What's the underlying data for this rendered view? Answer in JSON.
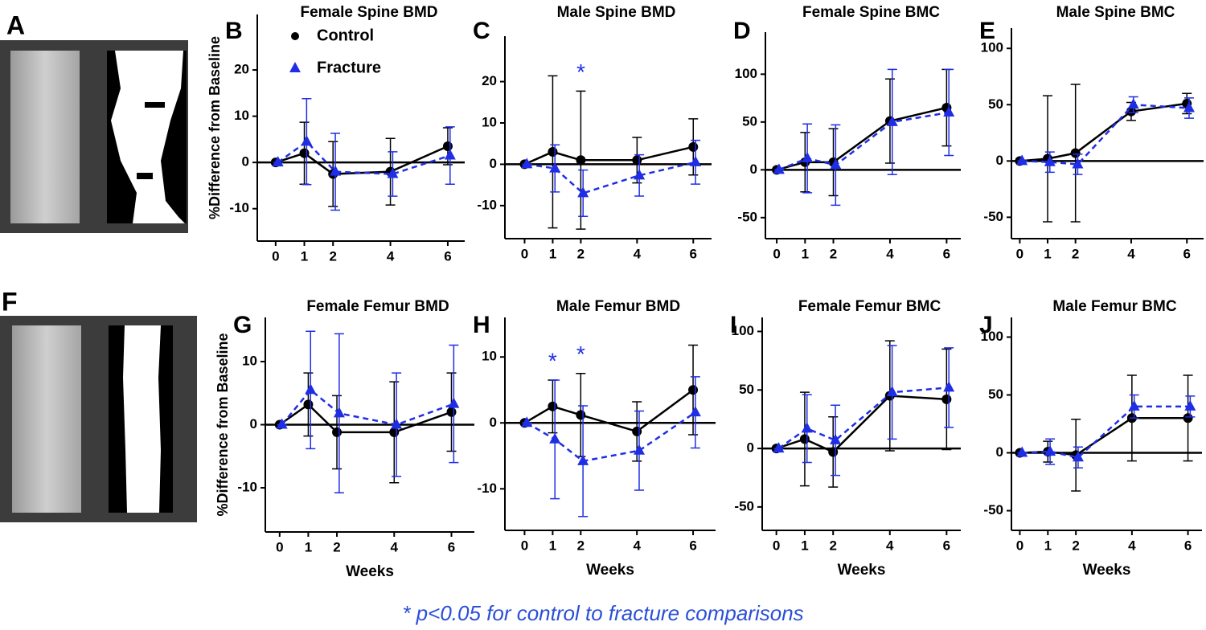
{
  "figure": {
    "image_panels": [
      {
        "label": "A"
      },
      {
        "label": "F"
      }
    ],
    "footnote": "* p<0.05 for control to fracture comparisons"
  },
  "chart_data": [
    {
      "label": "B",
      "type": "line",
      "title": "Female Spine BMD",
      "ylabel": "%Difference from Baseline",
      "legend": "upper left",
      "x": [
        0,
        1,
        2,
        4,
        6
      ],
      "xticks": [
        0,
        1,
        2,
        4,
        6
      ],
      "xlim": [
        -0.64,
        6.59
      ],
      "ylim": [
        -17,
        32
      ],
      "yticks": [
        -10,
        0,
        10,
        20
      ],
      "hline": 0,
      "series": [
        {
          "name": "Control",
          "color": "#000000",
          "line_style": "solid",
          "marker": "circle",
          "values": [
            0,
            2,
            -2.5,
            -2,
            3.5
          ],
          "errors": [
            0,
            6.7,
            7,
            7.2,
            4
          ]
        },
        {
          "name": "Fracture",
          "color": "#1f2ee6",
          "line_style": "dashed",
          "marker": "triangle",
          "values": [
            0,
            4.5,
            -2,
            -2.5,
            1.5
          ],
          "errors": [
            0,
            9.3,
            8.3,
            4.8,
            6.2
          ]
        }
      ]
    },
    {
      "label": "C",
      "type": "line",
      "title": "Male Spine BMD",
      "x": [
        0,
        1,
        2,
        4,
        6
      ],
      "xticks": [
        0,
        1,
        2,
        4,
        6
      ],
      "xlim": [
        -0.7,
        6.65
      ],
      "ylim": [
        -18,
        31
      ],
      "yticks": [
        -10,
        0,
        10,
        20
      ],
      "hline": 0,
      "series": [
        {
          "name": "Control",
          "color": "#000000",
          "line_style": "solid",
          "marker": "circle",
          "values": [
            0,
            3,
            1,
            1,
            4.2
          ],
          "errors": [
            0,
            18.4,
            16.7,
            5.5,
            6.8
          ]
        },
        {
          "name": "Fracture",
          "color": "#1f2ee6",
          "line_style": "dashed",
          "marker": "triangle",
          "values": [
            0,
            -1,
            -7,
            -2.7,
            0.5
          ],
          "errors": [
            0,
            5.7,
            5.6,
            5,
            5.3
          ]
        }
      ],
      "annotations": [
        {
          "text": "*",
          "x": 2
        }
      ]
    },
    {
      "label": "D",
      "type": "line",
      "title": "Female Spine BMC",
      "x": [
        0,
        1,
        2,
        4,
        6
      ],
      "xticks": [
        0,
        1,
        2,
        4,
        6
      ],
      "xlim": [
        -0.4,
        6.5
      ],
      "ylim": [
        -72,
        144
      ],
      "yticks": [
        -50,
        0,
        50,
        100
      ],
      "hline": 0,
      "series": [
        {
          "name": "Control",
          "color": "#000000",
          "line_style": "solid",
          "marker": "circle",
          "values": [
            0,
            8,
            8,
            51,
            65
          ],
          "errors": [
            0,
            31,
            35,
            44,
            40
          ]
        },
        {
          "name": "Fracture",
          "color": "#1f2ee6",
          "line_style": "dashed",
          "marker": "triangle",
          "values": [
            0,
            12,
            5,
            50,
            60
          ],
          "errors": [
            0,
            36,
            42,
            55,
            45
          ]
        }
      ]
    },
    {
      "label": "E",
      "type": "line",
      "title": "Male Spine BMC",
      "x": [
        0,
        1,
        2,
        4,
        6
      ],
      "xticks": [
        0,
        1,
        2,
        4,
        6
      ],
      "xlim": [
        -0.3,
        6.6
      ],
      "ylim": [
        -69,
        118
      ],
      "yticks": [
        -50,
        0,
        50,
        100
      ],
      "hline": 0,
      "series": [
        {
          "name": "Control",
          "color": "#000000",
          "line_style": "solid",
          "marker": "circle",
          "values": [
            0,
            2,
            7,
            44,
            51
          ],
          "errors": [
            0,
            56,
            61,
            8,
            9
          ]
        },
        {
          "name": "Fracture",
          "color": "#1f2ee6",
          "line_style": "dashed",
          "marker": "triangle",
          "values": [
            0,
            -1,
            -3,
            50,
            47
          ],
          "errors": [
            0,
            9,
            9,
            7,
            9
          ]
        }
      ]
    },
    {
      "label": "G",
      "type": "line",
      "title": "Female Femur BMD",
      "ylabel": "%Difference from Baseline",
      "xlabel": "Weeks",
      "x": [
        0,
        1,
        2,
        4,
        6
      ],
      "xticks": [
        0,
        1,
        2,
        4,
        6
      ],
      "xlim": [
        -0.5,
        6.8
      ],
      "ylim": [
        -17,
        17
      ],
      "yticks": [
        -10,
        0,
        10
      ],
      "hline": 0,
      "series": [
        {
          "name": "Control",
          "color": "#000000",
          "line_style": "solid",
          "marker": "circle",
          "values": [
            0,
            3.2,
            -1.2,
            -1.2,
            2
          ],
          "errors": [
            0,
            5,
            5.8,
            8,
            6.2
          ]
        },
        {
          "name": "Fracture",
          "color": "#1f2ee6",
          "line_style": "dashed",
          "marker": "triangle",
          "values": [
            0,
            5.5,
            1.8,
            0,
            3.3
          ],
          "errors": [
            0,
            9.3,
            12.6,
            8.2,
            9.3
          ]
        }
      ]
    },
    {
      "label": "H",
      "type": "line",
      "title": "Male Femur BMD",
      "xlabel": "Weeks",
      "x": [
        0,
        1,
        2,
        4,
        6
      ],
      "xticks": [
        0,
        1,
        2,
        4,
        6
      ],
      "xlim": [
        -0.7,
        6.8
      ],
      "ylim": [
        -16.3,
        16
      ],
      "yticks": [
        -10,
        0,
        10
      ],
      "hline": 0,
      "series": [
        {
          "name": "Control",
          "color": "#000000",
          "line_style": "solid",
          "marker": "circle",
          "values": [
            0,
            2.5,
            1.2,
            -1.3,
            5
          ],
          "errors": [
            0,
            4,
            6.3,
            4.5,
            6.8
          ]
        },
        {
          "name": "Fracture",
          "color": "#1f2ee6",
          "line_style": "dashed",
          "marker": "triangle",
          "values": [
            0,
            -2.5,
            -5.8,
            -4.2,
            1.6
          ],
          "errors": [
            0,
            9,
            8.4,
            6,
            5.4
          ]
        }
      ],
      "annotations": [
        {
          "text": "*",
          "x": 1
        },
        {
          "text": "*",
          "x": 2
        }
      ]
    },
    {
      "label": "I",
      "type": "line",
      "title": "Female Femur BMC",
      "xlabel": "Weeks",
      "x": [
        0,
        1,
        2,
        4,
        6
      ],
      "xticks": [
        0,
        1,
        2,
        4,
        6
      ],
      "xlim": [
        -0.5,
        6.5
      ],
      "ylim": [
        -70,
        112
      ],
      "yticks": [
        -50,
        0,
        50,
        100
      ],
      "hline": 0,
      "series": [
        {
          "name": "Control",
          "color": "#000000",
          "line_style": "solid",
          "marker": "circle",
          "values": [
            0,
            8,
            -3,
            45,
            42
          ],
          "errors": [
            0,
            40,
            30,
            47,
            43
          ]
        },
        {
          "name": "Fracture",
          "color": "#1f2ee6",
          "line_style": "dashed",
          "marker": "triangle",
          "values": [
            0,
            17,
            7,
            48,
            52
          ],
          "errors": [
            0,
            29,
            30,
            40,
            34
          ]
        }
      ]
    },
    {
      "label": "J",
      "type": "line",
      "title": "Male Femur BMC",
      "xlabel": "Weeks",
      "x": [
        0,
        1,
        2,
        4,
        6
      ],
      "xticks": [
        0,
        1,
        2,
        4,
        6
      ],
      "xlim": [
        -0.3,
        6.5
      ],
      "ylim": [
        -67,
        117
      ],
      "yticks": [
        -50,
        0,
        50,
        100
      ],
      "hline": 0,
      "series": [
        {
          "name": "Control",
          "color": "#000000",
          "line_style": "solid",
          "marker": "circle",
          "values": [
            0,
            1,
            -2,
            30,
            30
          ],
          "errors": [
            0,
            9,
            31,
            37,
            37
          ]
        },
        {
          "name": "Fracture",
          "color": "#1f2ee6",
          "line_style": "dashed",
          "marker": "triangle",
          "values": [
            0,
            1,
            -4,
            40,
            40
          ],
          "errors": [
            0,
            11,
            9,
            10,
            9
          ]
        }
      ]
    }
  ]
}
